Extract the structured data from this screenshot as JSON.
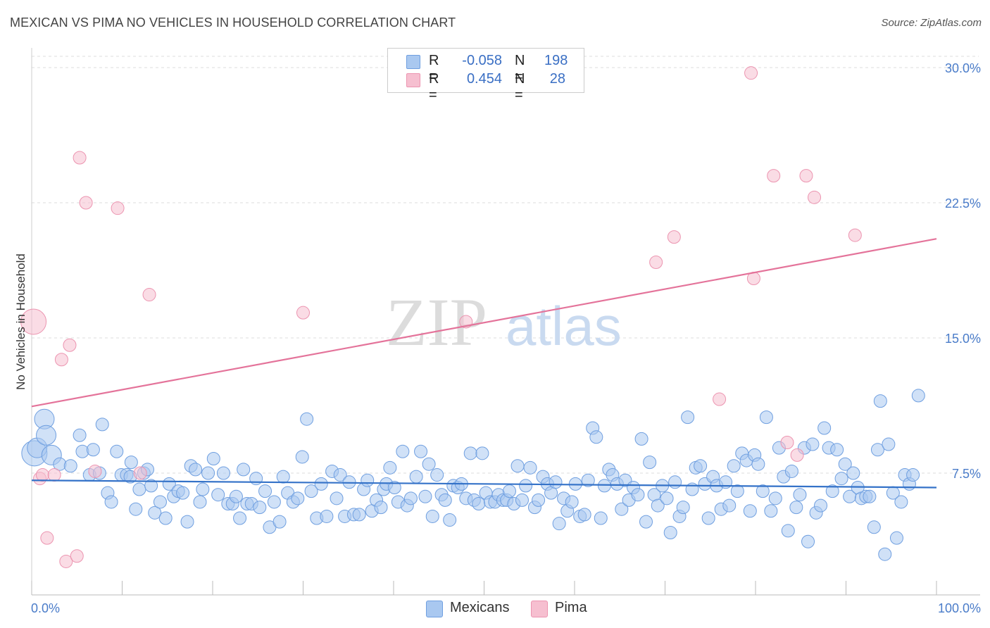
{
  "title": "MEXICAN VS PIMA NO VEHICLES IN HOUSEHOLD CORRELATION CHART",
  "source": "Source: ZipAtlas.com",
  "watermark": {
    "zip": "ZIP",
    "atlas": "atlas"
  },
  "colors": {
    "blue_fill": "#a9c8f0",
    "blue_stroke": "#6f9fe0",
    "blue_line": "#3472c8",
    "pink_fill": "#f6bfd0",
    "pink_stroke": "#ec94b0",
    "pink_line": "#e4739a",
    "tick_text": "#4a7cc9",
    "grid": "#dddddd"
  },
  "legend": [
    {
      "r_label": "R =",
      "r_value": "-0.058",
      "n_label": "N =",
      "n_value": "198"
    },
    {
      "r_label": "R =",
      "r_value": "0.454",
      "n_label": "N =",
      "n_value": "28"
    }
  ],
  "bottom_legend": [
    "Mexicans",
    "Pima"
  ],
  "chart_data": {
    "type": "scatter",
    "title": "MEXICAN VS PIMA NO VEHICLES IN HOUSEHOLD CORRELATION CHART",
    "xlabel": "",
    "ylabel": "No Vehicles in Household",
    "xlim": [
      0,
      100
    ],
    "ylim": [
      0,
      31
    ],
    "x_tick_labels": [
      "0.0%",
      "100.0%"
    ],
    "y_ticks": [
      7.5,
      15.0,
      22.5,
      30.0
    ],
    "y_tick_labels": [
      "7.5%",
      "15.0%",
      "22.5%",
      "30.0%"
    ],
    "grid": true,
    "series": [
      {
        "name": "Mexicans",
        "trend": {
          "x": [
            0,
            100
          ],
          "y": [
            7.1,
            6.7
          ]
        },
        "points": [
          [
            0.3,
            8.6,
            3
          ],
          [
            0.6,
            8.9,
            2
          ],
          [
            1.4,
            10.5,
            2
          ],
          [
            1.6,
            9.6,
            2
          ],
          [
            2.2,
            8.5,
            2
          ],
          [
            3.1,
            8.0,
            1
          ],
          [
            4.3,
            7.9,
            1
          ],
          [
            5.3,
            9.6,
            1
          ],
          [
            5.6,
            8.7,
            1
          ],
          [
            6.4,
            7.4,
            1
          ],
          [
            6.8,
            8.8,
            1
          ],
          [
            7.5,
            7.5,
            1
          ],
          [
            7.8,
            10.2,
            1
          ],
          [
            8.4,
            6.4,
            1
          ],
          [
            8.8,
            5.9,
            1
          ],
          [
            9.4,
            8.7,
            1
          ],
          [
            9.9,
            7.4,
            1
          ],
          [
            10.5,
            7.4,
            1
          ],
          [
            10.9,
            7.3,
            1
          ],
          [
            11.0,
            8.1,
            1
          ],
          [
            11.5,
            5.5,
            1
          ],
          [
            11.9,
            6.6,
            1
          ],
          [
            12.4,
            7.5,
            1
          ],
          [
            12.8,
            7.7,
            1
          ],
          [
            13.2,
            6.8,
            1
          ],
          [
            13.6,
            5.3,
            1
          ],
          [
            14.2,
            5.9,
            1
          ],
          [
            14.8,
            5.0,
            1
          ],
          [
            15.2,
            6.9,
            1
          ],
          [
            15.7,
            6.2,
            1
          ],
          [
            16.2,
            6.5,
            1
          ],
          [
            16.7,
            6.4,
            1
          ],
          [
            17.2,
            4.8,
            1
          ],
          [
            17.6,
            7.9,
            1
          ],
          [
            18.1,
            7.7,
            1
          ],
          [
            18.6,
            5.9,
            1
          ],
          [
            18.9,
            6.6,
            1
          ],
          [
            19.5,
            7.5,
            1
          ],
          [
            20.1,
            8.3,
            1
          ],
          [
            20.6,
            6.3,
            1
          ],
          [
            21.2,
            7.5,
            1
          ],
          [
            21.7,
            5.8,
            1
          ],
          [
            22.2,
            5.8,
            1
          ],
          [
            22.6,
            6.2,
            1
          ],
          [
            23.0,
            5.0,
            1
          ],
          [
            23.4,
            7.7,
            1
          ],
          [
            23.8,
            5.8,
            1
          ],
          [
            24.3,
            5.8,
            1
          ],
          [
            24.8,
            7.2,
            1
          ],
          [
            25.2,
            5.6,
            1
          ],
          [
            25.8,
            6.5,
            1
          ],
          [
            26.3,
            4.5,
            1
          ],
          [
            26.8,
            5.9,
            1
          ],
          [
            27.4,
            4.8,
            1
          ],
          [
            27.8,
            7.3,
            1
          ],
          [
            28.3,
            6.4,
            1
          ],
          [
            28.9,
            5.9,
            1
          ],
          [
            29.4,
            6.1,
            1
          ],
          [
            29.9,
            8.4,
            1
          ],
          [
            30.4,
            10.5,
            1
          ],
          [
            30.9,
            6.5,
            1
          ],
          [
            31.5,
            5.0,
            1
          ],
          [
            32.0,
            6.9,
            1
          ],
          [
            32.6,
            5.1,
            1
          ],
          [
            33.2,
            7.6,
            1
          ],
          [
            33.7,
            6.1,
            1
          ],
          [
            34.1,
            7.4,
            1
          ],
          [
            34.6,
            5.1,
            1
          ],
          [
            35.1,
            7.0,
            1
          ],
          [
            35.6,
            5.2,
            1
          ],
          [
            36.2,
            5.2,
            1
          ],
          [
            36.7,
            6.6,
            1
          ],
          [
            37.1,
            7.1,
            1
          ],
          [
            37.6,
            5.4,
            1
          ],
          [
            38.1,
            6.0,
            1
          ],
          [
            38.6,
            5.6,
            1
          ],
          [
            38.9,
            6.6,
            1
          ],
          [
            39.2,
            6.9,
            1
          ],
          [
            39.6,
            7.8,
            1
          ],
          [
            40.1,
            6.7,
            1
          ],
          [
            40.5,
            5.9,
            1
          ],
          [
            41.0,
            8.7,
            1
          ],
          [
            41.5,
            5.7,
            1
          ],
          [
            41.9,
            6.1,
            1
          ],
          [
            42.5,
            7.3,
            1
          ],
          [
            43.0,
            8.7,
            1
          ],
          [
            43.5,
            6.2,
            1
          ],
          [
            43.9,
            8.0,
            1
          ],
          [
            44.3,
            5.1,
            1
          ],
          [
            44.8,
            7.4,
            1
          ],
          [
            45.3,
            6.3,
            1
          ],
          [
            45.7,
            6.0,
            1
          ],
          [
            46.2,
            4.9,
            1
          ],
          [
            46.6,
            6.8,
            1
          ],
          [
            47.1,
            6.7,
            1
          ],
          [
            47.5,
            6.9,
            1
          ],
          [
            48.0,
            6.1,
            1
          ],
          [
            48.5,
            8.6,
            1
          ],
          [
            48.9,
            6.0,
            1
          ],
          [
            49.4,
            5.8,
            1
          ],
          [
            49.8,
            8.6,
            1
          ],
          [
            50.2,
            6.4,
            1
          ],
          [
            50.7,
            5.9,
            1
          ],
          [
            51.2,
            5.9,
            1
          ],
          [
            51.6,
            6.3,
            1
          ],
          [
            52.1,
            6.0,
            1
          ],
          [
            52.5,
            6.0,
            1
          ],
          [
            52.8,
            6.5,
            1
          ],
          [
            53.3,
            5.8,
            1
          ],
          [
            53.7,
            7.9,
            1
          ],
          [
            54.2,
            6.0,
            1
          ],
          [
            54.6,
            6.8,
            1
          ],
          [
            55.1,
            7.8,
            1
          ],
          [
            55.6,
            5.6,
            1
          ],
          [
            56.0,
            6.0,
            1
          ],
          [
            56.5,
            7.3,
            1
          ],
          [
            57.0,
            6.9,
            1
          ],
          [
            57.4,
            6.4,
            1
          ],
          [
            57.9,
            7.0,
            1
          ],
          [
            58.3,
            4.7,
            1
          ],
          [
            58.8,
            6.1,
            1
          ],
          [
            59.2,
            5.4,
            1
          ],
          [
            59.7,
            5.9,
            1
          ],
          [
            60.1,
            6.9,
            1
          ],
          [
            60.6,
            5.1,
            1
          ],
          [
            61.1,
            5.2,
            1
          ],
          [
            61.5,
            7.1,
            1
          ],
          [
            62.0,
            10.0,
            1
          ],
          [
            62.4,
            9.5,
            1
          ],
          [
            62.9,
            5.0,
            1
          ],
          [
            63.3,
            6.8,
            1
          ],
          [
            63.8,
            7.7,
            1
          ],
          [
            64.2,
            7.4,
            1
          ],
          [
            64.7,
            6.9,
            1
          ],
          [
            65.2,
            5.5,
            1
          ],
          [
            65.6,
            7.1,
            1
          ],
          [
            66.0,
            6.0,
            1
          ],
          [
            66.5,
            6.7,
            1
          ],
          [
            67.0,
            6.3,
            1
          ],
          [
            67.4,
            9.4,
            1
          ],
          [
            67.9,
            4.8,
            1
          ],
          [
            68.3,
            8.1,
            1
          ],
          [
            68.8,
            6.3,
            1
          ],
          [
            69.2,
            5.7,
            1
          ],
          [
            69.7,
            6.8,
            1
          ],
          [
            70.2,
            6.1,
            1
          ],
          [
            70.6,
            4.2,
            1
          ],
          [
            71.1,
            7.0,
            1
          ],
          [
            71.6,
            5.1,
            1
          ],
          [
            72.0,
            5.6,
            1
          ],
          [
            72.5,
            10.6,
            1
          ],
          [
            73.0,
            6.6,
            1
          ],
          [
            73.4,
            7.8,
            1
          ],
          [
            73.9,
            7.9,
            1
          ],
          [
            74.4,
            6.9,
            1
          ],
          [
            74.8,
            5.0,
            1
          ],
          [
            75.3,
            7.3,
            1
          ],
          [
            75.7,
            6.8,
            1
          ],
          [
            76.2,
            5.5,
            1
          ],
          [
            76.7,
            7.0,
            1
          ],
          [
            77.1,
            5.7,
            1
          ],
          [
            77.6,
            7.9,
            1
          ],
          [
            78.0,
            6.5,
            1
          ],
          [
            78.5,
            8.6,
            1
          ],
          [
            79.0,
            8.2,
            1
          ],
          [
            79.4,
            5.4,
            1
          ],
          [
            79.9,
            8.5,
            1
          ],
          [
            80.3,
            8.0,
            1
          ],
          [
            80.8,
            6.5,
            1
          ],
          [
            81.2,
            10.6,
            1
          ],
          [
            81.7,
            5.4,
            1
          ],
          [
            82.2,
            6.1,
            1
          ],
          [
            82.6,
            8.9,
            1
          ],
          [
            83.1,
            7.3,
            1
          ],
          [
            83.6,
            4.3,
            1
          ],
          [
            84.0,
            7.6,
            1
          ],
          [
            84.5,
            5.6,
            1
          ],
          [
            84.9,
            6.3,
            1
          ],
          [
            85.4,
            8.9,
            1
          ],
          [
            85.8,
            3.7,
            1
          ],
          [
            86.3,
            9.1,
            1
          ],
          [
            86.7,
            5.3,
            1
          ],
          [
            87.2,
            5.7,
            1
          ],
          [
            87.6,
            10.0,
            1
          ],
          [
            88.1,
            8.9,
            1
          ],
          [
            88.5,
            6.5,
            1
          ],
          [
            89.0,
            8.8,
            1
          ],
          [
            89.5,
            7.2,
            1
          ],
          [
            89.9,
            8.0,
            1
          ],
          [
            90.4,
            6.2,
            1
          ],
          [
            90.8,
            7.5,
            1
          ],
          [
            91.3,
            6.7,
            1
          ],
          [
            91.7,
            6.1,
            1
          ],
          [
            92.2,
            6.2,
            1
          ],
          [
            92.6,
            6.2,
            1
          ],
          [
            93.1,
            4.5,
            1
          ],
          [
            93.5,
            8.8,
            1
          ],
          [
            93.8,
            11.5,
            1
          ],
          [
            94.3,
            3.0,
            1
          ],
          [
            94.7,
            9.1,
            1
          ],
          [
            95.2,
            6.4,
            1
          ],
          [
            95.6,
            3.9,
            1
          ],
          [
            96.1,
            5.9,
            1
          ],
          [
            96.5,
            7.4,
            1
          ],
          [
            97.0,
            6.9,
            1
          ],
          [
            97.4,
            7.4,
            1
          ],
          [
            98.0,
            11.8,
            1
          ]
        ]
      },
      {
        "name": "Pima",
        "trend": {
          "x": [
            0,
            100
          ],
          "y": [
            11.2,
            20.5
          ]
        },
        "points": [
          [
            0.2,
            15.9,
            3
          ],
          [
            0.9,
            7.2,
            1
          ],
          [
            1.2,
            7.4,
            1
          ],
          [
            1.7,
            3.9,
            1
          ],
          [
            2.5,
            7.4,
            1
          ],
          [
            3.3,
            13.8,
            1
          ],
          [
            3.8,
            2.6,
            1
          ],
          [
            4.2,
            14.6,
            1
          ],
          [
            5.0,
            2.9,
            1
          ],
          [
            5.3,
            25.0,
            1
          ],
          [
            6.0,
            22.5,
            1
          ],
          [
            7.0,
            7.6,
            1
          ],
          [
            9.5,
            22.2,
            1
          ],
          [
            12.0,
            7.5,
            1
          ],
          [
            13.0,
            17.4,
            1
          ],
          [
            30.0,
            16.4,
            1
          ],
          [
            48.0,
            15.9,
            1
          ],
          [
            69.0,
            19.2,
            1
          ],
          [
            71.0,
            20.6,
            1
          ],
          [
            76.0,
            11.6,
            1
          ],
          [
            79.5,
            29.7,
            1
          ],
          [
            79.8,
            18.3,
            1
          ],
          [
            82.0,
            24.0,
            1
          ],
          [
            83.5,
            9.2,
            1
          ],
          [
            84.6,
            8.5,
            1
          ],
          [
            85.6,
            24.0,
            1
          ],
          [
            86.5,
            22.8,
            1
          ],
          [
            91.0,
            20.7,
            1
          ]
        ]
      }
    ]
  }
}
